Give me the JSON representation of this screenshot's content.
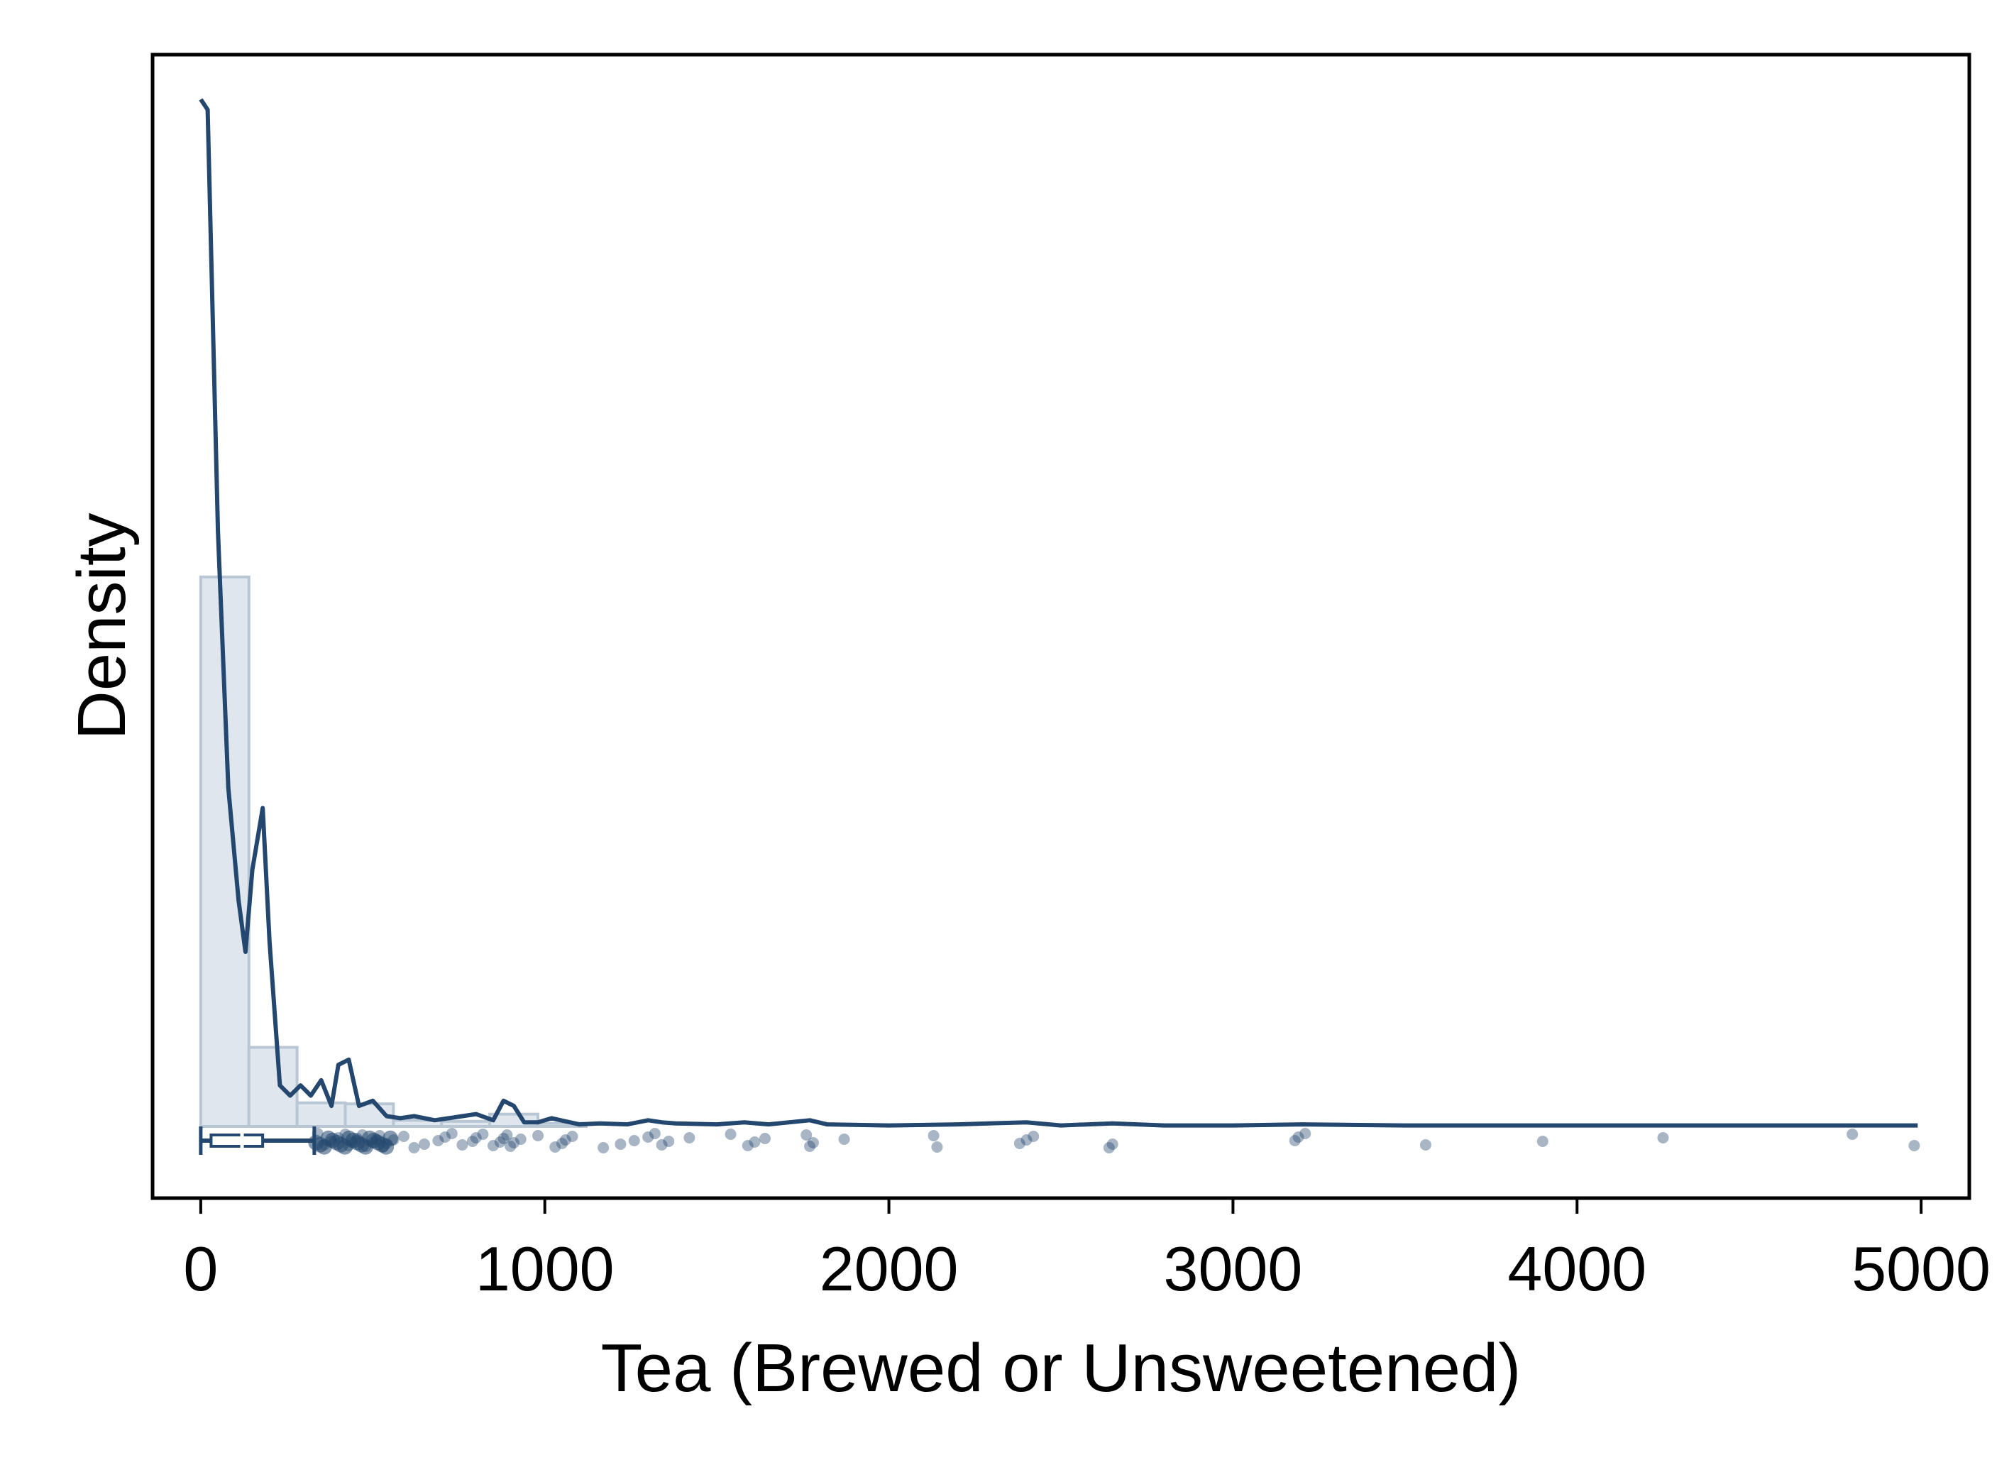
{
  "chart_data": {
    "type": "histogram+density+boxplot+strip",
    "xlabel": "Tea (Brewed or Unsweetened)",
    "ylabel": "Density",
    "xlim": [
      -140,
      5140
    ],
    "xticks": [
      0,
      1000,
      2000,
      3000,
      4000,
      5000
    ],
    "xtick_labels": [
      "0",
      "1000",
      "2000",
      "3000",
      "4000",
      "5000"
    ],
    "y_ticks_shown": false,
    "grid": false,
    "colors": {
      "line": "#23476e",
      "hist_fill": "#dbe3eb",
      "hist_edge": "#b9c6d3",
      "points": "#23476e"
    },
    "histogram": {
      "bin_width": 140,
      "bins": [
        {
          "x0": 0,
          "x1": 140,
          "density": 0.535
        },
        {
          "x0": 140,
          "x1": 280,
          "density": 0.077
        },
        {
          "x0": 280,
          "x1": 420,
          "density": 0.023
        },
        {
          "x0": 420,
          "x1": 560,
          "density": 0.022
        },
        {
          "x0": 560,
          "x1": 700,
          "density": 0.006
        },
        {
          "x0": 700,
          "x1": 840,
          "density": 0.005
        },
        {
          "x0": 840,
          "x1": 980,
          "density": 0.012
        },
        {
          "x0": 980,
          "x1": 1120,
          "density": 0.003
        }
      ]
    },
    "density_curve": {
      "x": [
        0,
        20,
        50,
        80,
        110,
        130,
        150,
        180,
        200,
        230,
        260,
        290,
        320,
        350,
        380,
        400,
        430,
        460,
        500,
        540,
        580,
        620,
        680,
        740,
        800,
        850,
        880,
        910,
        940,
        980,
        1020,
        1060,
        1100,
        1160,
        1240,
        1300,
        1340,
        1380,
        1500,
        1580,
        1650,
        1770,
        1820,
        2000,
        2200,
        2400,
        2500,
        2650,
        2800,
        3000,
        3200,
        3500,
        3900,
        4200,
        4600,
        4990
      ],
      "y": [
        1.0,
        0.99,
        0.58,
        0.33,
        0.22,
        0.17,
        0.25,
        0.31,
        0.18,
        0.04,
        0.03,
        0.04,
        0.03,
        0.045,
        0.02,
        0.06,
        0.065,
        0.02,
        0.025,
        0.01,
        0.008,
        0.01,
        0.006,
        0.009,
        0.012,
        0.006,
        0.025,
        0.02,
        0.004,
        0.004,
        0.008,
        0.005,
        0.002,
        0.003,
        0.002,
        0.006,
        0.004,
        0.003,
        0.002,
        0.004,
        0.002,
        0.006,
        0.002,
        0.001,
        0.002,
        0.004,
        0.001,
        0.003,
        0.001,
        0.001,
        0.002,
        0.001,
        0.001,
        0.001,
        0.001,
        0.001
      ]
    },
    "boxplot": {
      "min": 0,
      "q1": 30,
      "median": 120,
      "q3": 180,
      "whisker_high": 330
    },
    "strip_points": [
      340,
      360,
      380,
      400,
      420,
      430,
      440,
      455,
      470,
      480,
      500,
      510,
      520,
      530,
      540,
      560,
      590,
      620,
      650,
      690,
      710,
      730,
      760,
      790,
      800,
      820,
      850,
      870,
      880,
      890,
      900,
      910,
      930,
      980,
      1030,
      1050,
      1060,
      1080,
      1170,
      1220,
      1260,
      1300,
      1320,
      1340,
      1360,
      1420,
      1540,
      1590,
      1610,
      1640,
      1760,
      1770,
      1780,
      1870,
      2130,
      2140,
      2380,
      2400,
      2420,
      2640,
      2650,
      3180,
      3190,
      3210,
      3560,
      3900,
      4250,
      4800,
      4980
    ]
  }
}
